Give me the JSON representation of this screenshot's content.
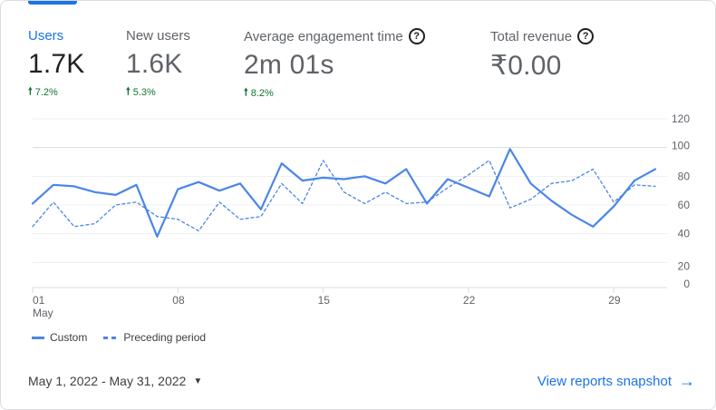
{
  "metrics": [
    {
      "label": "Users",
      "value": "1.7K",
      "delta": "7.2%",
      "active": true,
      "help": false
    },
    {
      "label": "New users",
      "value": "1.6K",
      "delta": "5.3%",
      "active": false,
      "help": false
    },
    {
      "label": "Average engagement time",
      "value": "2m 01s",
      "delta": "8.2%",
      "active": false,
      "help": true
    },
    {
      "label": "Total revenue",
      "value": "₹0.00",
      "delta": "",
      "active": false,
      "help": true
    }
  ],
  "chart_data": {
    "type": "line",
    "x": [
      1,
      2,
      3,
      4,
      5,
      6,
      7,
      8,
      9,
      10,
      11,
      12,
      13,
      14,
      15,
      16,
      17,
      18,
      19,
      20,
      21,
      22,
      23,
      24,
      25,
      26,
      27,
      28,
      29,
      30,
      31
    ],
    "x_ticks": [
      {
        "day": 1,
        "label": "01",
        "sub": "May"
      },
      {
        "day": 8,
        "label": "08",
        "sub": ""
      },
      {
        "day": 15,
        "label": "15",
        "sub": ""
      },
      {
        "day": 22,
        "label": "22",
        "sub": ""
      },
      {
        "day": 29,
        "label": "29",
        "sub": ""
      }
    ],
    "y_ticks": [
      "120",
      "100",
      "80",
      "60",
      "40",
      "20",
      "0"
    ],
    "ylim": [
      0,
      120
    ],
    "series": [
      {
        "name": "Custom",
        "style": "solid",
        "color": "#4a86e8",
        "values": [
          61,
          74,
          73,
          69,
          67,
          74,
          38,
          71,
          76,
          70,
          75,
          57,
          89,
          77,
          79,
          78,
          80,
          75,
          85,
          61,
          78,
          72,
          66,
          99,
          75,
          63,
          53,
          45,
          59,
          77,
          85
        ]
      },
      {
        "name": "Preceding period",
        "style": "dashed",
        "color": "#4a86e8",
        "values": [
          45,
          62,
          45,
          47,
          60,
          62,
          52,
          50,
          42,
          62,
          50,
          52,
          75,
          61,
          91,
          69,
          61,
          69,
          61,
          62,
          72,
          81,
          91,
          58,
          64,
          75,
          77,
          85,
          62,
          74,
          73
        ]
      }
    ]
  },
  "legend": {
    "custom": "Custom",
    "preceding": "Preceding period"
  },
  "date_range": {
    "label": "May 1, 2022 - May 31, 2022",
    "caret": "▼"
  },
  "snapshot_link": {
    "label": "View reports snapshot",
    "arrow": "→"
  },
  "icons": {
    "help": "question-circle-icon",
    "delta": "arrow-up-icon",
    "dropdown": "caret-down-icon",
    "link": "arrow-right-icon"
  }
}
